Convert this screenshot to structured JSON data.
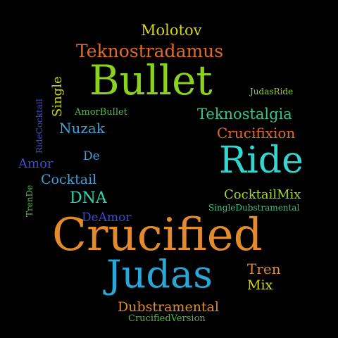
{
  "words": [
    {
      "text": "Molotov",
      "color": "#d4d41a"
    },
    {
      "text": "Teknostradamus",
      "color": "#e06a2b"
    },
    {
      "text": "Bullet",
      "color": "#8ad21d"
    },
    {
      "text": "JudasRide",
      "color": "#8ad21d"
    },
    {
      "text": "AmorBullet",
      "color": "#56b84a"
    },
    {
      "text": "Teknostalgia",
      "color": "#3cc18a"
    },
    {
      "text": "Nuzak",
      "color": "#3da0d8"
    },
    {
      "text": "Crucifixion",
      "color": "#e06a2b"
    },
    {
      "text": "Ride",
      "color": "#33d6d0"
    },
    {
      "text": "De",
      "color": "#3da0d8"
    },
    {
      "text": "Amor",
      "color": "#3a4ad6"
    },
    {
      "text": "Cocktail",
      "color": "#3da0d8"
    },
    {
      "text": "CocktailMix",
      "color": "#a7d71f"
    },
    {
      "text": "DNA",
      "color": "#33d6b0"
    },
    {
      "text": "SingleDubstramental",
      "color": "#3cc18a"
    },
    {
      "text": "DeAmor",
      "color": "#3a4ad6"
    },
    {
      "text": "Crucified",
      "color": "#e28a2c"
    },
    {
      "text": "Tren",
      "color": "#e08a2b"
    },
    {
      "text": "Judas",
      "color": "#2aa7d8"
    },
    {
      "text": "Mix",
      "color": "#d4d41a"
    },
    {
      "text": "Dubstramental",
      "color": "#e08a2b"
    },
    {
      "text": "CrucifiedVersion",
      "color": "#56b84a"
    },
    {
      "text": "Single",
      "color": "#c9d41a"
    },
    {
      "text": "RideCocktail",
      "color": "#3a4ad6"
    },
    {
      "text": "TrenDe",
      "color": "#56b84a"
    }
  ]
}
